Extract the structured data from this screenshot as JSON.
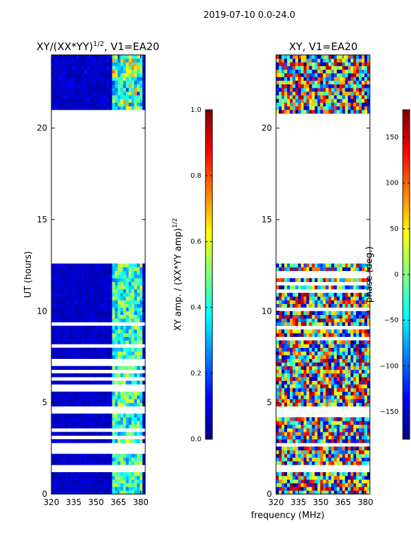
{
  "figure_title": "2019-07-10 0.0-24.0",
  "chart_data": [
    {
      "type": "heatmap",
      "title": "XY/(XX*YY)^1/2, V1=EA20",
      "title_main": "XY/(XX*YY)",
      "title_sup": "1/2",
      "title_tail": ", V1=EA20",
      "xlabel": "",
      "ylabel": "UT (hours)",
      "xlim": [
        320,
        383
      ],
      "ylim": [
        0,
        24
      ],
      "xticks": [
        320,
        335,
        350,
        365,
        380
      ],
      "yticks": [
        0,
        5,
        10,
        15,
        20
      ],
      "data_gaps_hours": [
        [
          20.5,
          20.7
        ],
        [
          12.6,
          20.5
        ],
        [
          4.5,
          4.8
        ],
        [
          2.6,
          2.8
        ],
        [
          1.3,
          1.6
        ]
      ],
      "colorbar": {
        "label": "XY amp. / (XX*YY amp)",
        "label_sup": "1/2",
        "range": [
          0.0,
          1.0
        ],
        "ticks": [
          "0.0",
          "0.2",
          "0.4",
          "0.6",
          "0.8",
          "1.0"
        ],
        "colormap": "jet"
      }
    },
    {
      "type": "heatmap",
      "title": "XY, V1=EA20",
      "xlabel": "frequency (MHz)",
      "ylabel": "",
      "xlim": [
        320,
        383
      ],
      "ylim": [
        0,
        24
      ],
      "xticks": [
        320,
        335,
        350,
        365,
        380
      ],
      "yticks": [
        0,
        5,
        10,
        15,
        20
      ],
      "data_gaps_hours": [
        [
          20.5,
          20.7
        ],
        [
          12.6,
          20.5
        ],
        [
          4.5,
          4.8
        ],
        [
          2.6,
          2.8
        ],
        [
          1.3,
          1.6
        ]
      ],
      "colorbar": {
        "label": "phase (deg.)",
        "range": [
          -180,
          180
        ],
        "ticks": [
          "150",
          "100",
          "50",
          "0",
          "−50",
          "−100",
          "−150"
        ],
        "tick_values": [
          150,
          100,
          50,
          0,
          -50,
          -100,
          -150
        ],
        "colormap": "jet"
      }
    }
  ]
}
